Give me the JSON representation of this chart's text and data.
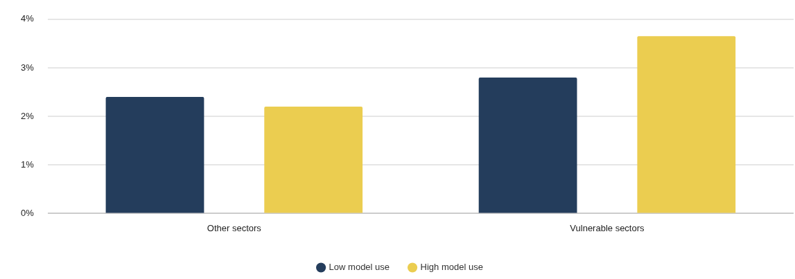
{
  "chart_data": {
    "type": "bar",
    "categories": [
      "Other sectors",
      "Vulnerable sectors"
    ],
    "series": [
      {
        "name": "Low model use",
        "color": "#243d5c",
        "values": [
          2.4,
          2.8
        ]
      },
      {
        "name": "High model use",
        "color": "#ebcd50",
        "values": [
          2.2,
          3.65
        ]
      }
    ],
    "ylim": [
      0,
      4
    ],
    "yticks": [
      {
        "value": 0,
        "label": "0%"
      },
      {
        "value": 1,
        "label": "1%"
      },
      {
        "value": 2,
        "label": "2%"
      },
      {
        "value": 3,
        "label": "3%"
      },
      {
        "value": 4,
        "label": "4%"
      }
    ],
    "grid": "y",
    "legend": "bottom"
  }
}
